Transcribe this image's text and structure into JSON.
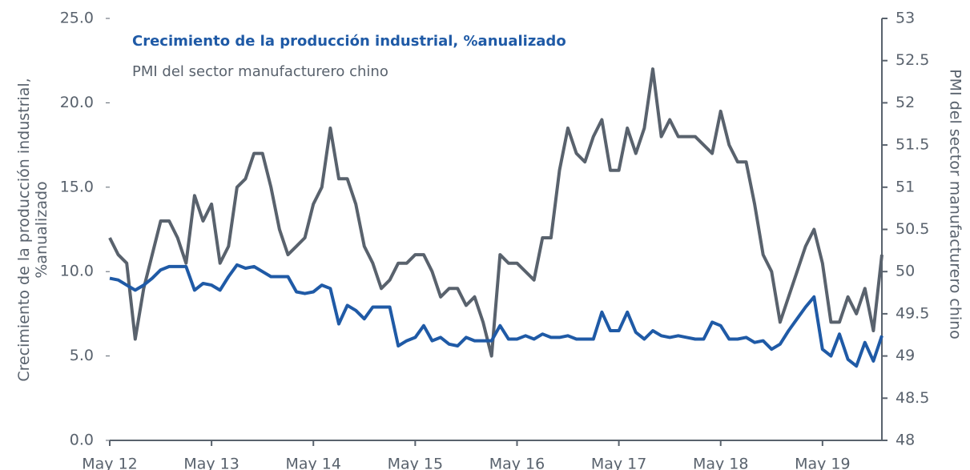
{
  "chart_data": {
    "type": "line",
    "ylabel": [
      "Crecimiento de la producción industrial,",
      "%anualizado"
    ],
    "y2label": "PMI del sector manufacturero chino",
    "categories": [
      "May 12",
      null,
      null,
      null,
      null,
      null,
      null,
      null,
      null,
      null,
      null,
      null,
      "May 13",
      null,
      null,
      null,
      null,
      null,
      null,
      null,
      null,
      null,
      null,
      null,
      "May 14",
      null,
      null,
      null,
      null,
      null,
      null,
      null,
      null,
      null,
      null,
      null,
      "May 15",
      null,
      null,
      null,
      null,
      null,
      null,
      null,
      null,
      null,
      null,
      null,
      "May 16",
      null,
      null,
      null,
      null,
      null,
      null,
      null,
      null,
      null,
      null,
      null,
      "May 17",
      null,
      null,
      null,
      null,
      null,
      null,
      null,
      null,
      null,
      null,
      null,
      "May 18",
      null,
      null,
      null,
      null,
      null,
      null,
      null,
      null,
      null,
      null,
      null,
      "May 19",
      null,
      null,
      null,
      null,
      null,
      null,
      null
    ],
    "ylim": [
      0,
      25
    ],
    "yticks": [
      {
        "value": 0,
        "label": "0.0"
      },
      {
        "value": 5,
        "label": "5.0"
      },
      {
        "value": 10,
        "label": "10.0"
      },
      {
        "value": 15,
        "label": "15.0"
      },
      {
        "value": 20,
        "label": "20.0"
      },
      {
        "value": 25,
        "label": "25.0"
      }
    ],
    "y2lim": [
      48,
      53
    ],
    "y2ticks": [
      48,
      48.5,
      49,
      49.5,
      50,
      50.5,
      51,
      51.5,
      52,
      52.5,
      53
    ],
    "legend": "top-left",
    "series": [
      {
        "name": "Crecimiento de la producción industrial, %anualizado",
        "color": "#1f5aa6",
        "values": [
          9.6,
          9.5,
          9.2,
          8.9,
          9.2,
          9.6,
          10.1,
          10.3,
          10.3,
          10.3,
          8.9,
          9.3,
          9.2,
          8.9,
          9.7,
          10.4,
          10.2,
          10.3,
          10.0,
          9.7,
          9.7,
          9.7,
          8.8,
          8.7,
          8.8,
          9.2,
          9.0,
          6.9,
          8.0,
          7.7,
          7.2,
          7.9,
          7.9,
          7.9,
          5.6,
          5.9,
          6.1,
          6.8,
          5.9,
          6.1,
          5.7,
          5.6,
          6.1,
          5.9,
          5.9,
          5.9,
          6.8,
          6.0,
          6.0,
          6.2,
          6.0,
          6.3,
          6.1,
          6.1,
          6.2,
          6.0,
          6.0,
          6.0,
          7.6,
          6.5,
          6.5,
          7.6,
          6.4,
          6.0,
          6.5,
          6.2,
          6.1,
          6.2,
          6.1,
          6.0,
          6.0,
          7.0,
          6.8,
          6.0,
          6.0,
          6.1,
          5.8,
          5.9,
          5.4,
          5.7,
          6.5,
          7.2,
          7.9,
          8.5,
          5.4,
          5.0,
          6.3,
          4.8,
          4.4,
          5.8,
          4.7,
          6.2
        ]
      },
      {
        "name": "PMI del sector manufacturero chino",
        "color": "#59626d",
        "axis": "y2",
        "values": [
          50.4,
          50.2,
          50.1,
          49.2,
          49.8,
          50.2,
          50.6,
          50.6,
          50.4,
          50.1,
          50.9,
          50.6,
          50.8,
          50.1,
          50.3,
          51.0,
          51.1,
          51.4,
          51.4,
          51.0,
          50.5,
          50.2,
          50.3,
          50.4,
          50.8,
          51.0,
          51.7,
          51.1,
          51.1,
          50.8,
          50.3,
          50.1,
          49.8,
          49.9,
          50.1,
          50.1,
          50.2,
          50.2,
          50.0,
          49.7,
          49.8,
          49.8,
          49.6,
          49.7,
          49.4,
          49.0,
          50.2,
          50.1,
          50.1,
          50.0,
          49.9,
          50.4,
          50.4,
          51.2,
          51.7,
          51.4,
          51.3,
          51.6,
          51.8,
          51.2,
          51.2,
          51.7,
          51.4,
          51.7,
          52.4,
          51.6,
          51.8,
          51.6,
          51.6,
          51.6,
          51.5,
          51.4,
          51.9,
          51.5,
          51.3,
          51.3,
          50.8,
          50.2,
          50.0,
          49.4,
          49.7,
          50.0,
          50.3,
          50.5,
          50.1,
          49.4,
          49.4,
          49.7,
          49.5,
          49.8,
          49.3,
          50.2
        ]
      }
    ]
  }
}
